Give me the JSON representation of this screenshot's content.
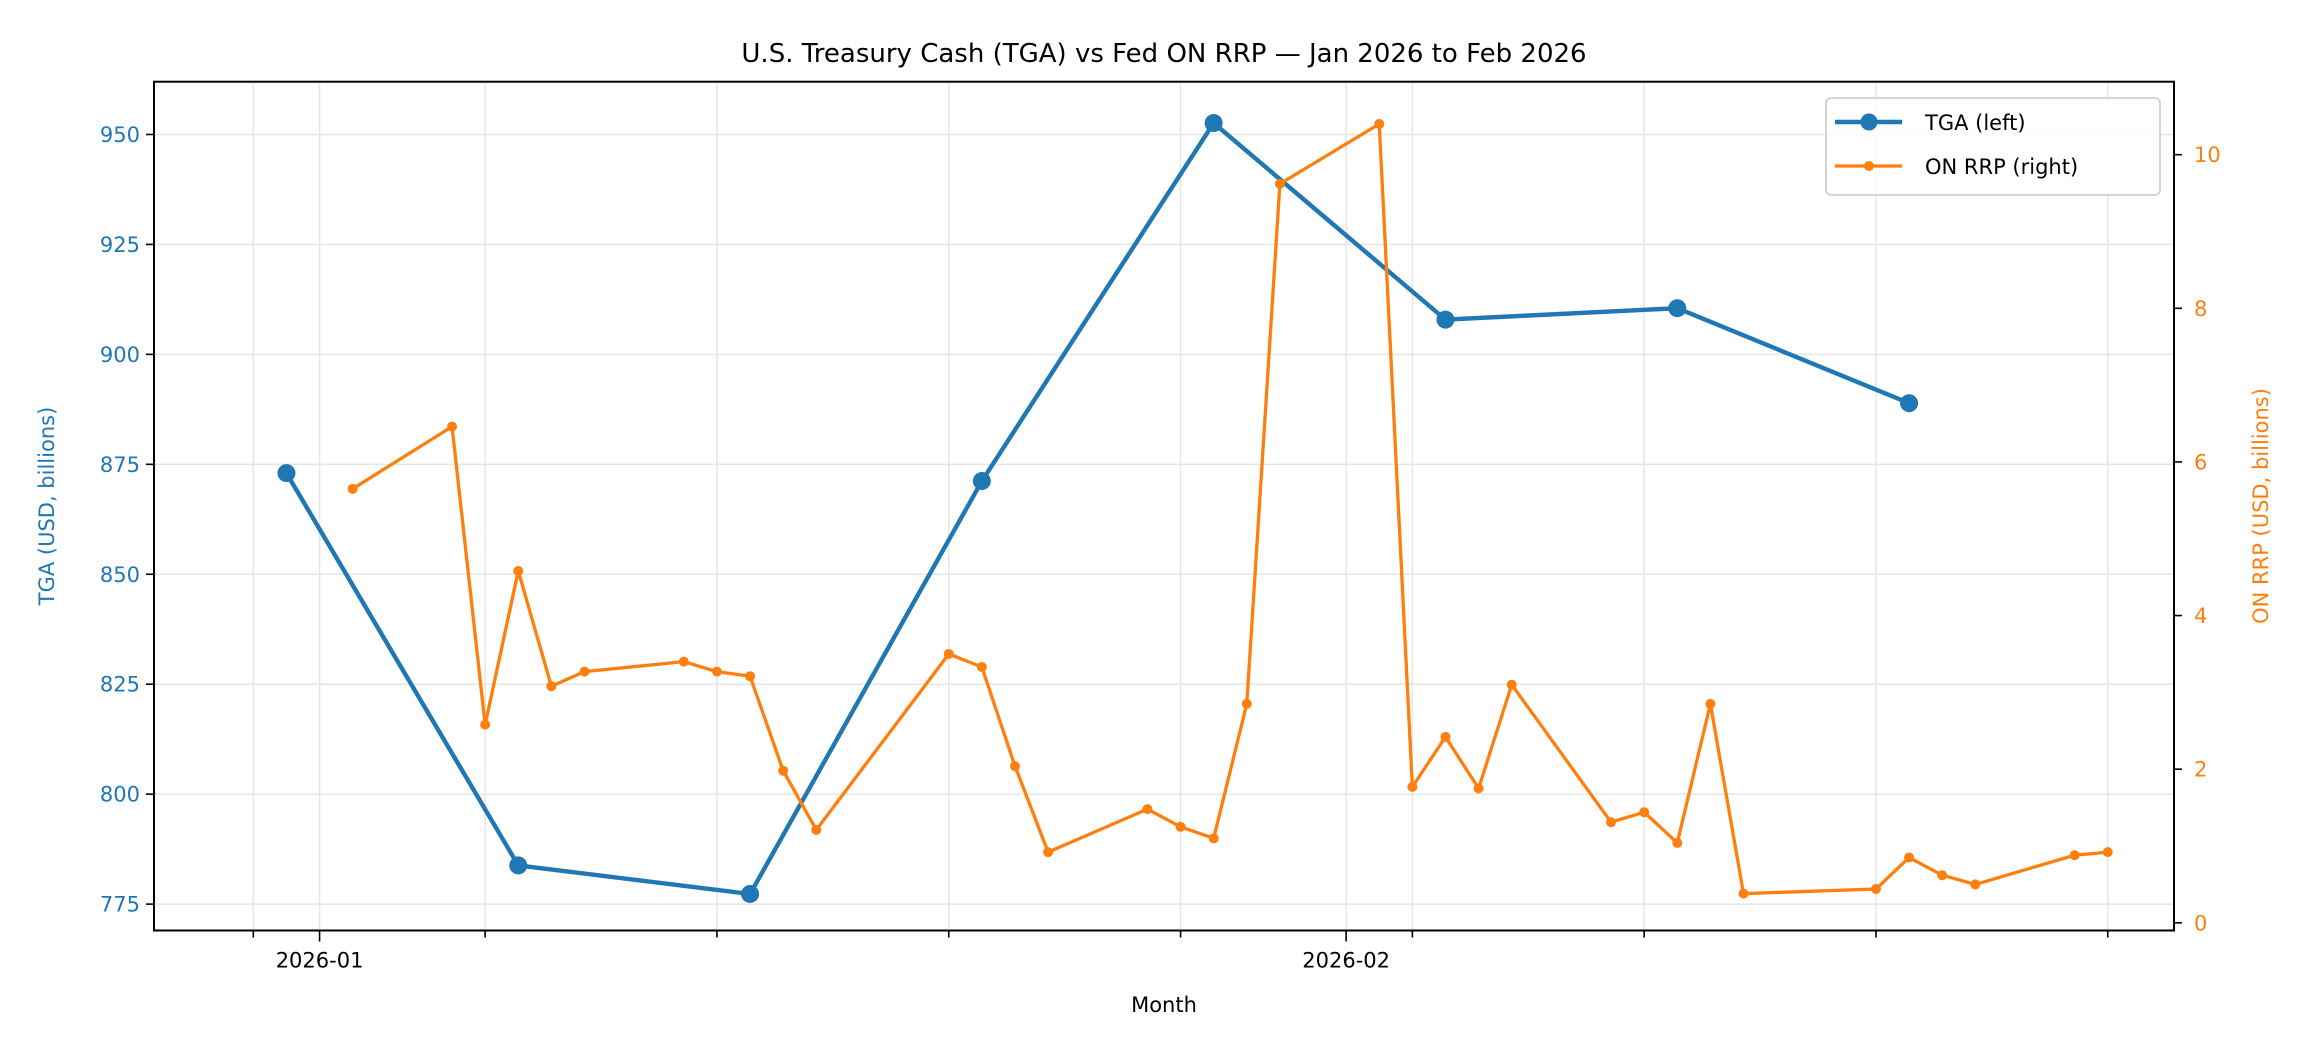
{
  "chart_data": {
    "type": "line",
    "title": "U.S. Treasury Cash (TGA) vs Fed ON RRP — Jan 2026 to Feb 2026",
    "xlabel": "Month",
    "ylabel_left": "TGA (USD, billions)",
    "ylabel_right": "ON RRP (USD, billions)",
    "x_tick_labels": [
      "2026-01",
      "2026-02"
    ],
    "x_major_ticks": [
      "2026-01-01",
      "2026-02-01"
    ],
    "x_minor_ticks": [
      "2025-12-30",
      "2026-01-06",
      "2026-01-13",
      "2026-01-20",
      "2026-01-27",
      "2026-02-03",
      "2026-02-10",
      "2026-02-17",
      "2026-02-24"
    ],
    "x_range": [
      "2025-12-27",
      "2026-02-26"
    ],
    "y_left_ticks": [
      775,
      800,
      825,
      850,
      875,
      900,
      925,
      950
    ],
    "y_left_range": [
      769,
      962
    ],
    "y_right_ticks": [
      0,
      2,
      4,
      6,
      8,
      10
    ],
    "y_right_range": [
      -0.1,
      10.95
    ],
    "grid": true,
    "legend_position": "upper-right",
    "colors": {
      "left": "#1f77b4",
      "right": "#ff7f0e"
    },
    "series": [
      {
        "name": "TGA (left)",
        "axis": "left",
        "color": "#1f77b4",
        "x": [
          "2025-12-31",
          "2026-01-07",
          "2026-01-14",
          "2026-01-21",
          "2026-01-28",
          "2026-02-04",
          "2026-02-11",
          "2026-02-18"
        ],
        "values": [
          873.0,
          783.8,
          777.3,
          871.2,
          952.6,
          907.9,
          910.5,
          888.9
        ]
      },
      {
        "name": "ON RRP (right)",
        "axis": "right",
        "color": "#ff7f0e",
        "x": [
          "2026-01-02",
          "2026-01-05",
          "2026-01-06",
          "2026-01-07",
          "2026-01-08",
          "2026-01-09",
          "2026-01-12",
          "2026-01-13",
          "2026-01-14",
          "2026-01-15",
          "2026-01-16",
          "2026-01-20",
          "2026-01-21",
          "2026-01-22",
          "2026-01-23",
          "2026-01-26",
          "2026-01-27",
          "2026-01-28",
          "2026-01-29",
          "2026-01-30",
          "2026-02-02",
          "2026-02-03",
          "2026-02-04",
          "2026-02-05",
          "2026-02-06",
          "2026-02-09",
          "2026-02-10",
          "2026-02-11",
          "2026-02-12",
          "2026-02-13",
          "2026-02-17",
          "2026-02-18",
          "2026-02-19",
          "2026-02-20",
          "2026-02-23",
          "2026-02-24"
        ],
        "values": [
          5.65,
          6.46,
          2.58,
          4.58,
          3.08,
          3.27,
          3.4,
          3.27,
          3.21,
          1.98,
          1.21,
          3.5,
          3.33,
          2.04,
          0.92,
          1.48,
          1.25,
          1.1,
          2.85,
          9.62,
          10.4,
          1.77,
          2.42,
          1.75,
          3.1,
          1.31,
          1.44,
          1.04,
          2.85,
          0.38,
          0.44,
          0.85,
          0.62,
          0.5,
          0.88,
          0.92
        ]
      }
    ]
  }
}
